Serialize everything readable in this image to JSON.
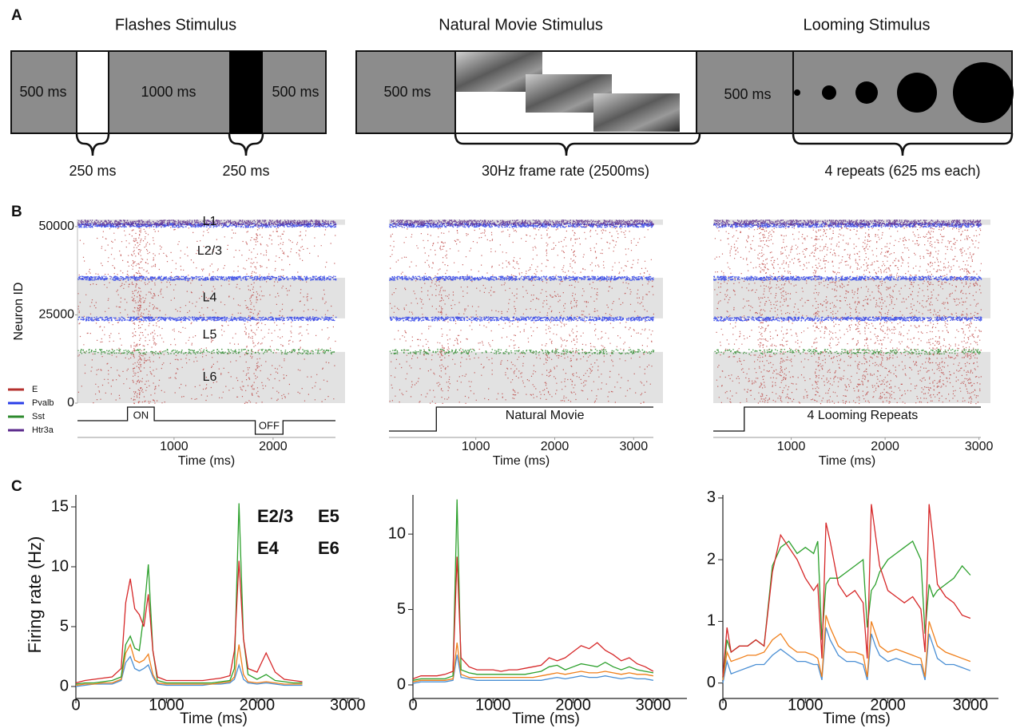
{
  "panel_labels": [
    "A",
    "B",
    "C"
  ],
  "stimuli": [
    {
      "title": "Flashes Stimulus",
      "labels": [
        "500 ms",
        "1000 ms",
        "500 ms"
      ],
      "braces": [
        "250 ms",
        "250 ms"
      ]
    },
    {
      "title": "Natural Movie Stimulus",
      "labels": [
        "500 ms"
      ],
      "braces": [
        "30Hz frame rate (2500ms)"
      ]
    },
    {
      "title": "Looming Stimulus",
      "labels": [
        "500 ms"
      ],
      "braces": [
        "4 repeats (625 ms each)"
      ]
    }
  ],
  "chart_data": [
    {
      "type": "raster",
      "xlim": [
        25,
        2630
      ],
      "xticks": [
        1000,
        2000
      ],
      "xlabel": "Time (ms)",
      "ylim": [
        0,
        52000
      ],
      "yticks": [
        0,
        25000,
        50000
      ],
      "ylabel": "Neuron ID",
      "legend": [
        {
          "name": "E",
          "color": "#b5302e"
        },
        {
          "name": "Pvalb",
          "color": "#2a3ee8"
        },
        {
          "name": "Sst",
          "color": "#2d8a2d"
        },
        {
          "name": "Htr3a",
          "color": "#5b2a8c"
        }
      ],
      "layers": [
        {
          "label": "L1",
          "from": 50500,
          "to": 52000,
          "shaded": true
        },
        {
          "label": "L2/3",
          "from": 35500,
          "to": 50500,
          "shaded": false
        },
        {
          "label": "L4",
          "from": 24000,
          "to": 35500,
          "shaded": true
        },
        {
          "label": "L5",
          "from": 14500,
          "to": 24000,
          "shaded": false
        },
        {
          "label": "L6",
          "from": 0,
          "to": 14500,
          "shaded": true
        }
      ],
      "stimulus": [
        {
          "label": "ON",
          "start": 530,
          "end": 800,
          "level": 1
        },
        {
          "label": "OFF",
          "start": 1820,
          "end": 2100,
          "level": -1
        }
      ]
    },
    {
      "type": "raster",
      "xlim": [
        -100,
        3250
      ],
      "xticks": [
        1000,
        2000,
        3000
      ],
      "xlabel": "Time (ms)",
      "ylim": [
        0,
        52000
      ],
      "layers": [
        {
          "from": 50500,
          "to": 52000,
          "shaded": true
        },
        {
          "from": 35500,
          "to": 50500,
          "shaded": false
        },
        {
          "from": 24000,
          "to": 35500,
          "shaded": true
        },
        {
          "from": 14500,
          "to": 24000,
          "shaded": false
        },
        {
          "from": 0,
          "to": 14500,
          "shaded": true
        }
      ],
      "stimulus": [
        {
          "label": "Natural Movie",
          "start": 500,
          "level": 1
        }
      ]
    },
    {
      "type": "raster",
      "xlim": [
        170,
        3020
      ],
      "xticks": [
        1000,
        2000,
        3000
      ],
      "xlabel": "Time (ms)",
      "ylim": [
        0,
        52000
      ],
      "layers": [
        {
          "from": 50500,
          "to": 52000,
          "shaded": true
        },
        {
          "from": 35500,
          "to": 50500,
          "shaded": false
        },
        {
          "from": 24000,
          "to": 35500,
          "shaded": true
        },
        {
          "from": 14500,
          "to": 24000,
          "shaded": false
        },
        {
          "from": 0,
          "to": 14500,
          "shaded": true
        }
      ],
      "stimulus": [
        {
          "label": "4 Looming Repeats",
          "start": 500,
          "level": 1
        }
      ]
    },
    {
      "type": "line",
      "xlabel": "Time (ms)",
      "ylabel": "Firing rate (Hz)",
      "xlim": [
        0,
        3130
      ],
      "xticks": [
        0,
        1000,
        2000,
        3000
      ],
      "ylim": [
        -1,
        16
      ],
      "yticks": [
        0,
        5,
        10,
        15
      ],
      "x": [
        0,
        100,
        200,
        300,
        400,
        500,
        550,
        600,
        650,
        700,
        750,
        800,
        850,
        900,
        1000,
        1100,
        1200,
        1300,
        1400,
        1500,
        1600,
        1700,
        1750,
        1800,
        1850,
        1900,
        2000,
        2100,
        2200,
        2300,
        2400,
        2500
      ],
      "series": [
        {
          "name": "E2/3",
          "color": "#4a8fd4",
          "values": [
            0,
            0.1,
            0.2,
            0.2,
            0.2,
            0.5,
            2.0,
            2.5,
            1.5,
            1.3,
            1.5,
            1.8,
            0.8,
            0.2,
            0.1,
            0.1,
            0.1,
            0.1,
            0.1,
            0.2,
            0.2,
            0.3,
            0.6,
            1.8,
            0.6,
            0.3,
            0.2,
            0.3,
            0.2,
            0.1,
            0.1,
            0.1
          ]
        },
        {
          "name": "E4",
          "color": "#f07f1a",
          "values": [
            0.1,
            0.2,
            0.2,
            0.3,
            0.3,
            0.6,
            2.8,
            3.5,
            2.2,
            2.0,
            2.2,
            2.7,
            1.0,
            0.3,
            0.2,
            0.2,
            0.2,
            0.2,
            0.2,
            0.2,
            0.3,
            0.4,
            0.8,
            3.5,
            1.0,
            0.4,
            0.3,
            0.4,
            0.3,
            0.2,
            0.2,
            0.2
          ]
        },
        {
          "name": "E5",
          "color": "#2ca02c",
          "values": [
            0.2,
            0.3,
            0.3,
            0.4,
            0.5,
            0.8,
            3.5,
            4.2,
            3.2,
            3.0,
            6.0,
            10.2,
            3.0,
            0.5,
            0.3,
            0.3,
            0.3,
            0.3,
            0.3,
            0.3,
            0.4,
            0.5,
            1.5,
            15.3,
            4.0,
            1.0,
            0.6,
            1.0,
            0.5,
            0.4,
            0.3,
            0.3
          ]
        },
        {
          "name": "E6",
          "color": "#d62728",
          "values": [
            0.3,
            0.5,
            0.6,
            0.7,
            0.8,
            1.5,
            7.0,
            9.0,
            6.5,
            6.0,
            5.0,
            7.7,
            3.0,
            0.8,
            0.5,
            0.5,
            0.5,
            0.5,
            0.5,
            0.6,
            0.7,
            0.9,
            3.0,
            10.5,
            4.0,
            1.5,
            1.2,
            2.8,
            1.2,
            0.6,
            0.5,
            0.4
          ]
        }
      ]
    },
    {
      "type": "line",
      "xlabel": "Time (ms)",
      "xlim": [
        0,
        3420
      ],
      "xticks": [
        0,
        1000,
        2000,
        3000
      ],
      "ylim": [
        -0.9,
        12.6
      ],
      "yticks": [
        0,
        5,
        10
      ],
      "x": [
        0,
        100,
        200,
        300,
        400,
        500,
        550,
        600,
        700,
        800,
        900,
        1000,
        1100,
        1200,
        1300,
        1400,
        1500,
        1600,
        1700,
        1800,
        1900,
        2000,
        2100,
        2200,
        2300,
        2400,
        2500,
        2600,
        2700,
        2800,
        2900,
        3000
      ],
      "series": [
        {
          "color": "#4a8fd4",
          "values": [
            0.1,
            0.2,
            0.2,
            0.2,
            0.2,
            0.3,
            2.0,
            0.5,
            0.4,
            0.3,
            0.3,
            0.3,
            0.3,
            0.3,
            0.3,
            0.3,
            0.3,
            0.3,
            0.4,
            0.5,
            0.4,
            0.5,
            0.6,
            0.5,
            0.5,
            0.6,
            0.5,
            0.4,
            0.5,
            0.4,
            0.4,
            0.3
          ]
        },
        {
          "color": "#f07f1a",
          "values": [
            0.2,
            0.3,
            0.3,
            0.3,
            0.3,
            0.4,
            2.8,
            0.7,
            0.5,
            0.5,
            0.5,
            0.5,
            0.5,
            0.5,
            0.5,
            0.5,
            0.5,
            0.6,
            0.7,
            0.8,
            0.7,
            0.8,
            0.9,
            0.8,
            0.8,
            0.9,
            0.8,
            0.7,
            0.8,
            0.7,
            0.7,
            0.6
          ]
        },
        {
          "color": "#2ca02c",
          "values": [
            0.3,
            0.4,
            0.4,
            0.4,
            0.4,
            0.6,
            12.3,
            1.0,
            0.8,
            0.7,
            0.7,
            0.7,
            0.7,
            0.7,
            0.7,
            0.7,
            0.8,
            0.9,
            1.2,
            1.3,
            1.0,
            1.2,
            1.4,
            1.3,
            1.2,
            1.5,
            1.2,
            1.0,
            1.2,
            1.0,
            0.9,
            0.8
          ]
        },
        {
          "color": "#d62728",
          "values": [
            0.4,
            0.6,
            0.6,
            0.6,
            0.7,
            0.9,
            8.5,
            1.8,
            1.2,
            1.0,
            1.0,
            1.0,
            0.9,
            1.0,
            1.0,
            1.1,
            1.2,
            1.3,
            1.8,
            1.6,
            1.8,
            2.2,
            2.6,
            2.4,
            2.8,
            2.3,
            2.0,
            1.6,
            1.8,
            1.4,
            1.2,
            0.9
          ]
        }
      ]
    },
    {
      "type": "line",
      "xlabel": "Time (ms)",
      "xlim": [
        0,
        3340
      ],
      "xticks": [
        0,
        1000,
        2000,
        3000
      ],
      "ylim": [
        -0.25,
        3.05
      ],
      "yticks": [
        0,
        1,
        2,
        3
      ],
      "x": [
        0,
        50,
        100,
        200,
        300,
        400,
        500,
        600,
        700,
        800,
        900,
        1000,
        1100,
        1150,
        1200,
        1250,
        1300,
        1400,
        1500,
        1600,
        1700,
        1750,
        1800,
        1850,
        1900,
        2000,
        2100,
        2200,
        2300,
        2400,
        2450,
        2500,
        2550,
        2600,
        2700,
        2800,
        2900,
        3000
      ],
      "series": [
        {
          "color": "#4a8fd4",
          "values": [
            0.0,
            0.35,
            0.15,
            0.2,
            0.25,
            0.3,
            0.3,
            0.45,
            0.55,
            0.45,
            0.35,
            0.35,
            0.3,
            0.3,
            0.05,
            0.9,
            0.7,
            0.45,
            0.35,
            0.35,
            0.3,
            0.05,
            0.8,
            0.6,
            0.45,
            0.35,
            0.4,
            0.35,
            0.3,
            0.3,
            0.05,
            0.8,
            0.6,
            0.4,
            0.3,
            0.3,
            0.25,
            0.2
          ]
        },
        {
          "color": "#f07f1a",
          "values": [
            0.05,
            0.5,
            0.35,
            0.4,
            0.45,
            0.45,
            0.5,
            0.7,
            0.8,
            0.6,
            0.5,
            0.5,
            0.45,
            0.4,
            0.1,
            1.1,
            0.9,
            0.6,
            0.5,
            0.5,
            0.45,
            0.1,
            1.0,
            0.8,
            0.6,
            0.5,
            0.55,
            0.5,
            0.45,
            0.4,
            0.1,
            1.0,
            0.8,
            0.6,
            0.5,
            0.45,
            0.4,
            0.35
          ]
        },
        {
          "color": "#2ca02c",
          "values": [
            0.1,
            0.7,
            0.5,
            0.6,
            0.6,
            0.7,
            0.6,
            1.9,
            2.2,
            2.3,
            2.1,
            2.2,
            2.1,
            2.3,
            0.7,
            1.6,
            1.7,
            1.7,
            1.8,
            1.9,
            2.0,
            0.9,
            1.5,
            1.6,
            1.8,
            2.0,
            2.1,
            2.2,
            2.3,
            2.0,
            0.8,
            1.6,
            1.4,
            1.5,
            1.6,
            1.7,
            1.9,
            1.75
          ]
        },
        {
          "color": "#d62728",
          "values": [
            0.1,
            0.9,
            0.5,
            0.6,
            0.6,
            0.7,
            0.6,
            1.8,
            2.4,
            2.2,
            2.0,
            1.7,
            1.5,
            1.6,
            0.4,
            2.6,
            2.3,
            1.6,
            1.4,
            1.5,
            1.3,
            0.4,
            2.9,
            2.4,
            1.9,
            1.5,
            1.4,
            1.3,
            1.4,
            1.2,
            0.5,
            2.9,
            2.3,
            1.6,
            1.4,
            1.3,
            1.1,
            1.05
          ]
        }
      ]
    }
  ]
}
